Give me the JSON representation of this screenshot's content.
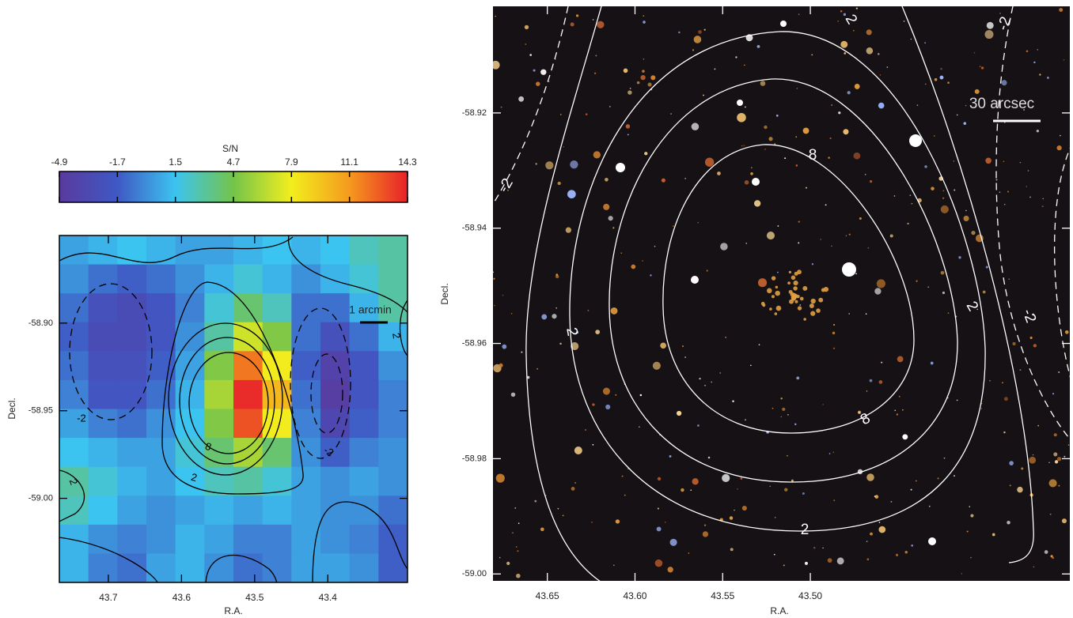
{
  "chart_data": [
    {
      "type": "heatmap",
      "colorbar_label": "S/N",
      "x_label": "R.A.",
      "y_label": "Decl.",
      "xlim": [
        43.767,
        43.291
      ],
      "xticks": [
        43.7,
        43.6,
        43.5,
        43.4
      ],
      "ylim": [
        -59.048,
        -58.85
      ],
      "yticks": [
        {
          "value": -58.9,
          "label": "-58.90"
        },
        -58.95,
        {
          "value": -59,
          "label": "-59.00"
        }
      ],
      "zlim": [
        -4.9,
        14.3
      ],
      "zticks": [
        -4.9,
        -1.7,
        1.5,
        4.7,
        7.9,
        11.1,
        14.3
      ],
      "colormap": [
        "#5a3a9e",
        "#3f58c4",
        "#3cc4f0",
        "#74c44a",
        "#f2ee1e",
        "#f59a1e",
        "#e8202a"
      ],
      "contour_levels": [
        -2,
        2,
        8
      ],
      "annotation": "1 arcmin",
      "values": [
        [
          0.5,
          1,
          1.5,
          1,
          0.5,
          0.5,
          1,
          1.5,
          1,
          1.5,
          2.5,
          3
        ],
        [
          0,
          -1,
          -1.5,
          -1,
          0,
          1,
          2,
          1,
          0,
          1,
          2,
          3
        ],
        [
          -1,
          -2.5,
          -3,
          -2,
          -0.5,
          2,
          4,
          2.5,
          -1,
          -1,
          1,
          3
        ],
        [
          -1.5,
          -3,
          -3,
          -2,
          0,
          3,
          7,
          5,
          -1,
          -2.5,
          -1,
          1
        ],
        [
          -1,
          -2.5,
          -2.5,
          -1.5,
          0.5,
          5,
          12,
          8,
          -1.5,
          -4,
          -2,
          0
        ],
        [
          -0.5,
          -2,
          -2,
          -1,
          1,
          6,
          14,
          10,
          -1,
          -4.5,
          -2,
          -0.5
        ],
        [
          0.5,
          -0.5,
          -1,
          0,
          1.5,
          5,
          13,
          8,
          -0.5,
          -3.5,
          -1.5,
          -0.5
        ],
        [
          1.5,
          1,
          0.5,
          0.5,
          2,
          4,
          6,
          4,
          0,
          -1.5,
          -0.5,
          0
        ],
        [
          3,
          2,
          1,
          0.5,
          1.5,
          2.5,
          3,
          2,
          0.5,
          0,
          0.5,
          0
        ],
        [
          2.5,
          1.5,
          0.5,
          0,
          0.5,
          1,
          0.5,
          1,
          0.5,
          0,
          0,
          -1
        ],
        [
          1,
          0,
          -0.5,
          0,
          1,
          0.5,
          -0.5,
          -0.5,
          0.5,
          0,
          -0.5,
          -1.5
        ],
        [
          1,
          -0.5,
          -1,
          0.5,
          1,
          0,
          -1,
          -0.5,
          0.5,
          0.5,
          0,
          -1.5
        ]
      ]
    },
    {
      "type": "image",
      "x_label": "R.A.",
      "y_label": "Decl.",
      "xlim": [
        43.681,
        43.352
      ],
      "xticks": [
        43.65,
        {
          "value": 43.6,
          "label": "43.60"
        },
        43.55,
        {
          "value": 43.5,
          "label": "43.50"
        }
      ],
      "ylim": [
        -59.0012,
        -58.9015
      ],
      "yticks": [
        -58.92,
        -58.94,
        -58.96,
        -58.98,
        {
          "value": -59,
          "label": "-59.00"
        }
      ],
      "contour_levels": [
        -2,
        2,
        8
      ],
      "annotation": "30 arcsec"
    }
  ]
}
